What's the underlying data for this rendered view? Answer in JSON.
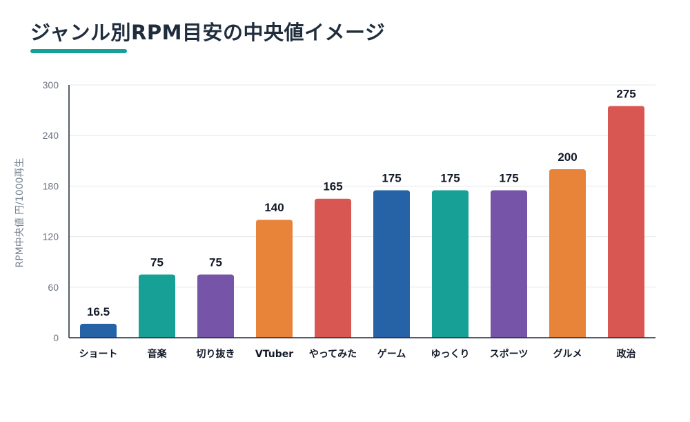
{
  "title": "ジャンル別RPM目安の中央値イメージ",
  "colors": {
    "accent": "#16a096",
    "title_text": "#1f2d3d",
    "grid": "#e5e7eb",
    "axis": "#1f2937"
  },
  "chart_data": {
    "type": "bar",
    "title": "ジャンル別RPM目安の中央値イメージ",
    "xlabel": "",
    "ylabel": "RPM中央値 円/1000再生",
    "ylim": [
      0,
      300
    ],
    "yticks": [
      0,
      60,
      120,
      180,
      240,
      300
    ],
    "grid": true,
    "legend": "none",
    "categories": [
      "ショート",
      "音楽",
      "切り抜き",
      "VTuber",
      "やってみた",
      "ゲーム",
      "ゆっくり",
      "スポーツ",
      "グルメ",
      "政治"
    ],
    "values": [
      16.5,
      75,
      75,
      140,
      165,
      175,
      175,
      175,
      200,
      275
    ],
    "value_labels": [
      "16.5",
      "75",
      "75",
      "140",
      "165",
      "175",
      "175",
      "175",
      "200",
      "275"
    ],
    "bar_colors": [
      "#2563a6",
      "#16a096",
      "#7654a8",
      "#e8833a",
      "#d95753",
      "#2563a6",
      "#16a096",
      "#7654a8",
      "#e8833a",
      "#d95753"
    ]
  }
}
